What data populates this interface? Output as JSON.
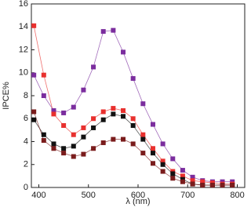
{
  "chart_data": {
    "type": "line",
    "xlabel": "λ (nm)",
    "ylabel": "IPCE%",
    "x": [
      390,
      410,
      430,
      450,
      470,
      490,
      510,
      530,
      550,
      570,
      590,
      610,
      630,
      650,
      670,
      690,
      710,
      730,
      750,
      770,
      790
    ],
    "series": [
      {
        "color": "#7b2d9e",
        "values": [
          9.8,
          8.0,
          6.7,
          6.5,
          7.0,
          8.5,
          10.5,
          13.6,
          13.7,
          11.8,
          9.5,
          7.3,
          5.5,
          3.8,
          2.5,
          1.5,
          0.9,
          0.6,
          0.5,
          0.5,
          0.5
        ]
      },
      {
        "color": "#e8302e",
        "values": [
          14.1,
          9.8,
          6.4,
          5.4,
          4.6,
          5.2,
          6.0,
          6.6,
          6.9,
          6.7,
          6.0,
          4.6,
          3.4,
          2.3,
          1.4,
          1.0,
          0.6,
          0.5,
          0.4,
          0.3,
          0.3
        ]
      },
      {
        "color": "#111111",
        "values": [
          5.9,
          4.6,
          3.8,
          3.4,
          3.6,
          4.4,
          5.2,
          5.9,
          6.4,
          6.2,
          5.4,
          4.2,
          3.0,
          2.0,
          1.2,
          0.7,
          0.3,
          0.2,
          0.2,
          0.2,
          0.2
        ]
      },
      {
        "color": "#7a1c1c",
        "values": [
          6.6,
          4.1,
          3.4,
          3.0,
          2.7,
          2.9,
          3.4,
          3.9,
          4.2,
          4.2,
          3.8,
          3.0,
          2.1,
          1.4,
          0.8,
          0.5,
          0.3,
          0.2,
          0.2,
          0.2,
          0.2
        ]
      }
    ],
    "markers": true,
    "xlim": [
      385,
      815
    ],
    "xticks": [
      400,
      500,
      600,
      700,
      800
    ],
    "ylim": [
      0,
      16
    ],
    "yticks": [
      0,
      2,
      4,
      6,
      8,
      10,
      12,
      14,
      16
    ]
  }
}
